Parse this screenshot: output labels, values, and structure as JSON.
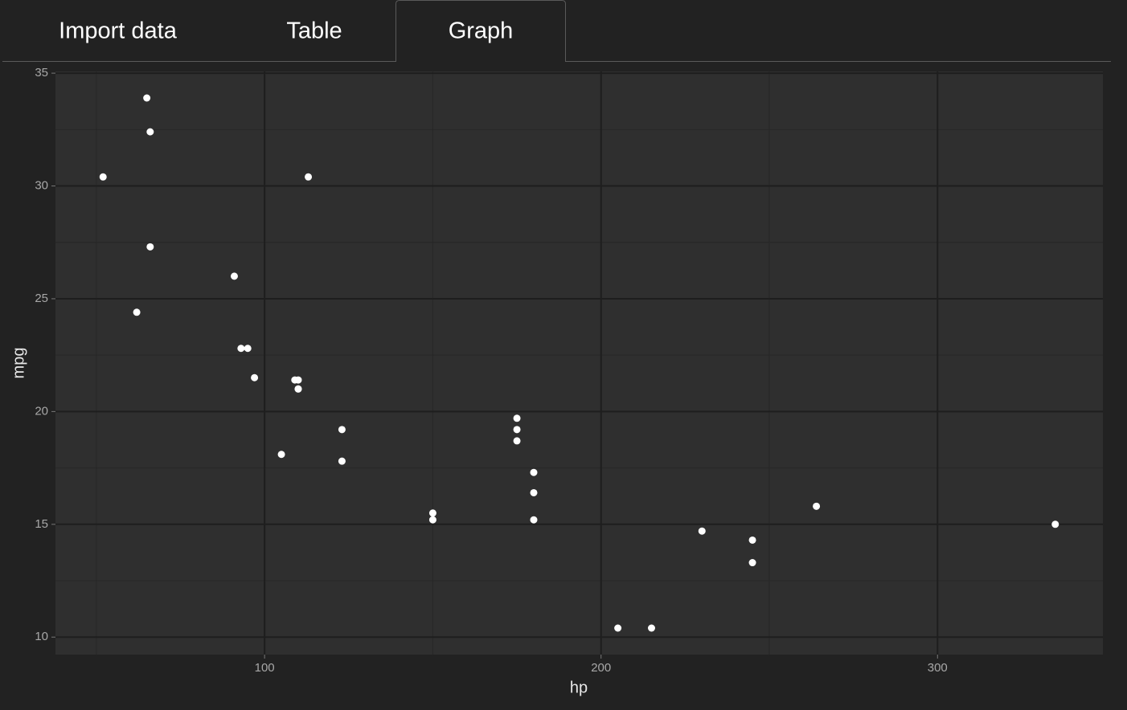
{
  "tabs": [
    "Import data",
    "Table",
    "Graph"
  ],
  "active_tab": 2,
  "chart_data": {
    "type": "scatter",
    "x_label": "hp",
    "y_label": "mpg",
    "x": [
      110,
      110,
      93,
      110,
      175,
      105,
      245,
      62,
      95,
      123,
      123,
      180,
      180,
      180,
      205,
      215,
      230,
      66,
      52,
      65,
      97,
      150,
      150,
      245,
      175,
      66,
      91,
      113,
      264,
      175,
      335,
      109
    ],
    "values": [
      21.0,
      21.0,
      22.8,
      21.4,
      18.7,
      18.1,
      14.3,
      24.4,
      22.8,
      19.2,
      17.8,
      16.4,
      17.3,
      15.2,
      10.4,
      10.4,
      14.7,
      32.4,
      30.4,
      33.9,
      21.5,
      15.5,
      15.2,
      13.3,
      19.2,
      27.3,
      26.0,
      30.4,
      15.8,
      19.7,
      15.0,
      21.4
    ],
    "color": "#ffffff",
    "xlim": [
      37.85,
      349.15
    ],
    "ylim": [
      9.225,
      35.075
    ],
    "xticks": [
      100,
      200,
      300
    ],
    "yticks": [
      10,
      15,
      20,
      25,
      30,
      35
    ],
    "x_minor_ticks": [
      50,
      150,
      250
    ],
    "y_minor_ticks": [
      12.5,
      17.5,
      22.5,
      27.5,
      32.5
    ],
    "grid": true
  }
}
